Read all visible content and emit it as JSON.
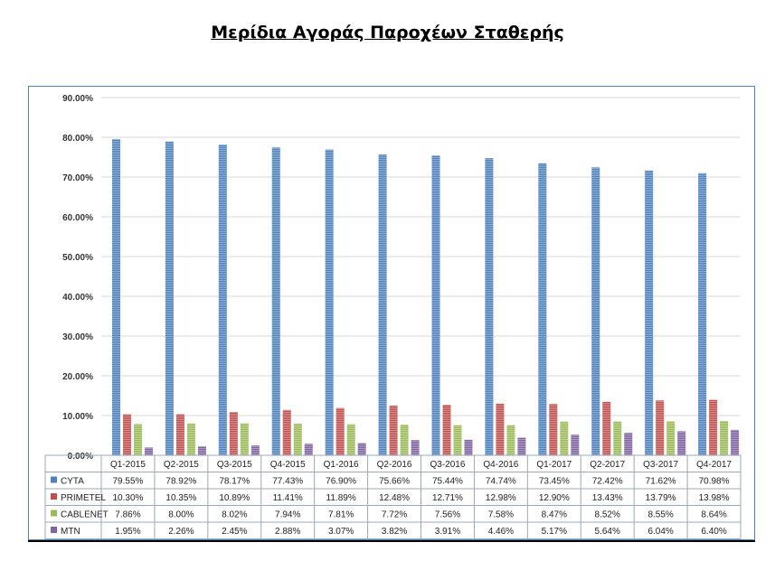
{
  "title": "Μερίδια Αγοράς Παροχέων Σταθερής",
  "chart_data": {
    "type": "bar",
    "title": "Μερίδια Αγοράς Παροχέων Σταθερής",
    "categories": [
      "Q1-2015",
      "Q2-2015",
      "Q3-2015",
      "Q4-2015",
      "Q1-2016",
      "Q2-2016",
      "Q3-2016",
      "Q4-2016",
      "Q1-2017",
      "Q2-2017",
      "Q3-2017",
      "Q4-2017"
    ],
    "ylim": [
      0,
      90
    ],
    "yticks": [
      "0.00%",
      "10.00%",
      "20.00%",
      "30.00%",
      "40.00%",
      "50.00%",
      "60.00%",
      "70.00%",
      "80.00%",
      "90.00%"
    ],
    "grid": true,
    "legend": "data-table",
    "series": [
      {
        "name": "CYTA",
        "color": "#4f81bd",
        "values": [
          79.55,
          78.92,
          78.17,
          77.43,
          76.9,
          75.66,
          75.44,
          74.74,
          73.45,
          72.42,
          71.62,
          70.98
        ],
        "labels": [
          "79.55%",
          "78.92%",
          "78.17%",
          "77.43%",
          "76.90%",
          "75.66%",
          "75.44%",
          "74.74%",
          "73.45%",
          "72.42%",
          "71.62%",
          "70.98%"
        ]
      },
      {
        "name": "PRIMETEL",
        "color": "#c0504d",
        "values": [
          10.3,
          10.35,
          10.89,
          11.41,
          11.89,
          12.48,
          12.71,
          12.98,
          12.9,
          13.43,
          13.79,
          13.98
        ],
        "labels": [
          "10.30%",
          "10.35%",
          "10.89%",
          "11.41%",
          "11.89%",
          "12.48%",
          "12.71%",
          "12.98%",
          "12.90%",
          "13.43%",
          "13.79%",
          "13.98%"
        ]
      },
      {
        "name": "CABLENET",
        "color": "#9bbb59",
        "values": [
          7.86,
          8.0,
          8.02,
          7.94,
          7.81,
          7.72,
          7.56,
          7.58,
          8.47,
          8.52,
          8.55,
          8.64
        ],
        "labels": [
          "7.86%",
          "8.00%",
          "8.02%",
          "7.94%",
          "7.81%",
          "7.72%",
          "7.56%",
          "7.58%",
          "8.47%",
          "8.52%",
          "8.55%",
          "8.64%"
        ]
      },
      {
        "name": "MTN",
        "color": "#8064a2",
        "values": [
          1.95,
          2.26,
          2.45,
          2.88,
          3.07,
          3.82,
          3.91,
          4.46,
          5.17,
          5.64,
          6.04,
          6.4
        ],
        "labels": [
          "1.95%",
          "2.26%",
          "2.45%",
          "2.88%",
          "3.07%",
          "3.82%",
          "3.91%",
          "4.46%",
          "5.17%",
          "5.64%",
          "6.04%",
          "6.40%"
        ]
      }
    ]
  }
}
